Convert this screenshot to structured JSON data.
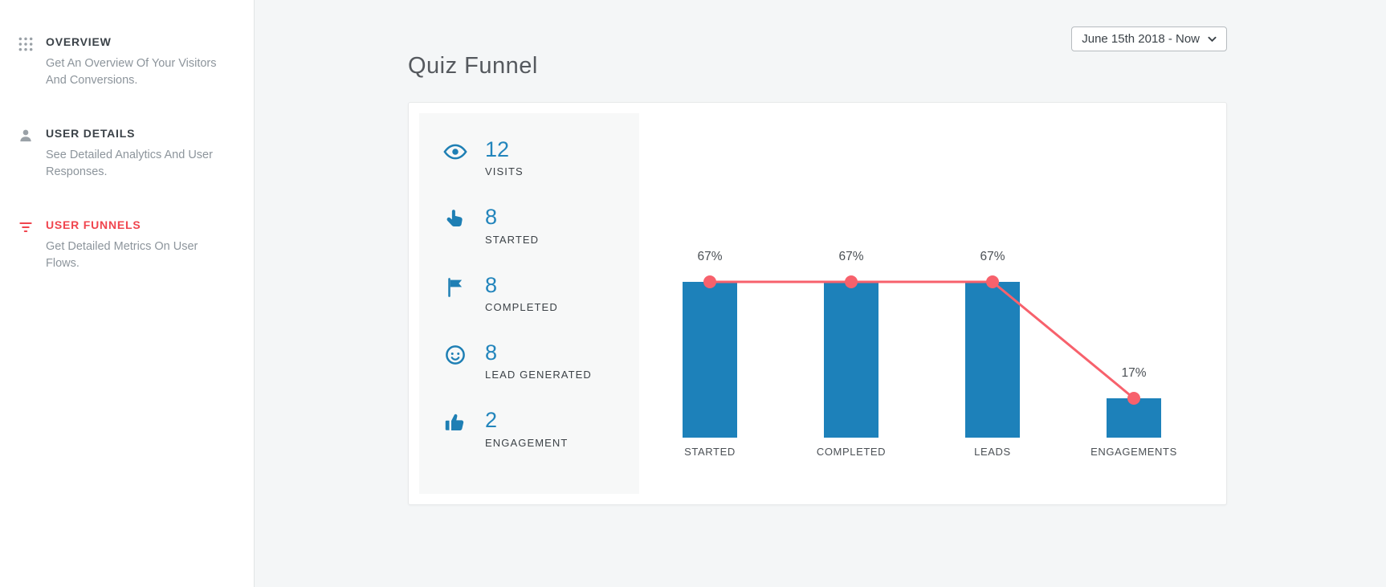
{
  "sidebar": {
    "items": [
      {
        "id": "overview",
        "title": "OVERVIEW",
        "description": "Get An Overview Of Your Visitors And Conversions.",
        "icon": "grid-icon",
        "active": false
      },
      {
        "id": "user-details",
        "title": "USER DETAILS",
        "description": "See Detailed Analytics And User Responses.",
        "icon": "user-icon",
        "active": false
      },
      {
        "id": "user-funnels",
        "title": "USER FUNNELS",
        "description": "Get Detailed Metrics On User Flows.",
        "icon": "funnel-icon",
        "active": true
      }
    ]
  },
  "header": {
    "date_range": "June 15th 2018 - Now"
  },
  "main": {
    "title": "Quiz Funnel"
  },
  "stats": [
    {
      "icon": "eye-icon",
      "value": "12",
      "label": "VISITS"
    },
    {
      "icon": "tap-icon",
      "value": "8",
      "label": "STARTED"
    },
    {
      "icon": "flag-icon",
      "value": "8",
      "label": "COMPLETED"
    },
    {
      "icon": "face-icon",
      "value": "8",
      "label": "LEAD GENERATED"
    },
    {
      "icon": "thumbs-up-icon",
      "value": "2",
      "label": "ENGAGEMENT"
    }
  ],
  "chart_data": {
    "type": "bar",
    "title": "Quiz Funnel",
    "categories": [
      "STARTED",
      "COMPLETED",
      "LEADS",
      "ENGAGEMENTS"
    ],
    "values": [
      67,
      67,
      67,
      17
    ],
    "value_labels": [
      "67%",
      "67%",
      "67%",
      "17%"
    ],
    "overlay_line": true,
    "xlabel": "",
    "ylabel": "",
    "ylim": [
      0,
      100
    ],
    "grid": false,
    "legend": "none",
    "bar_color": "#1d81ba",
    "line_color": "#f7616c"
  },
  "colors": {
    "accent_red": "#f0454e",
    "stat_blue": "#2285bc",
    "bar_blue": "#1d81ba",
    "line_red": "#f7616c"
  }
}
